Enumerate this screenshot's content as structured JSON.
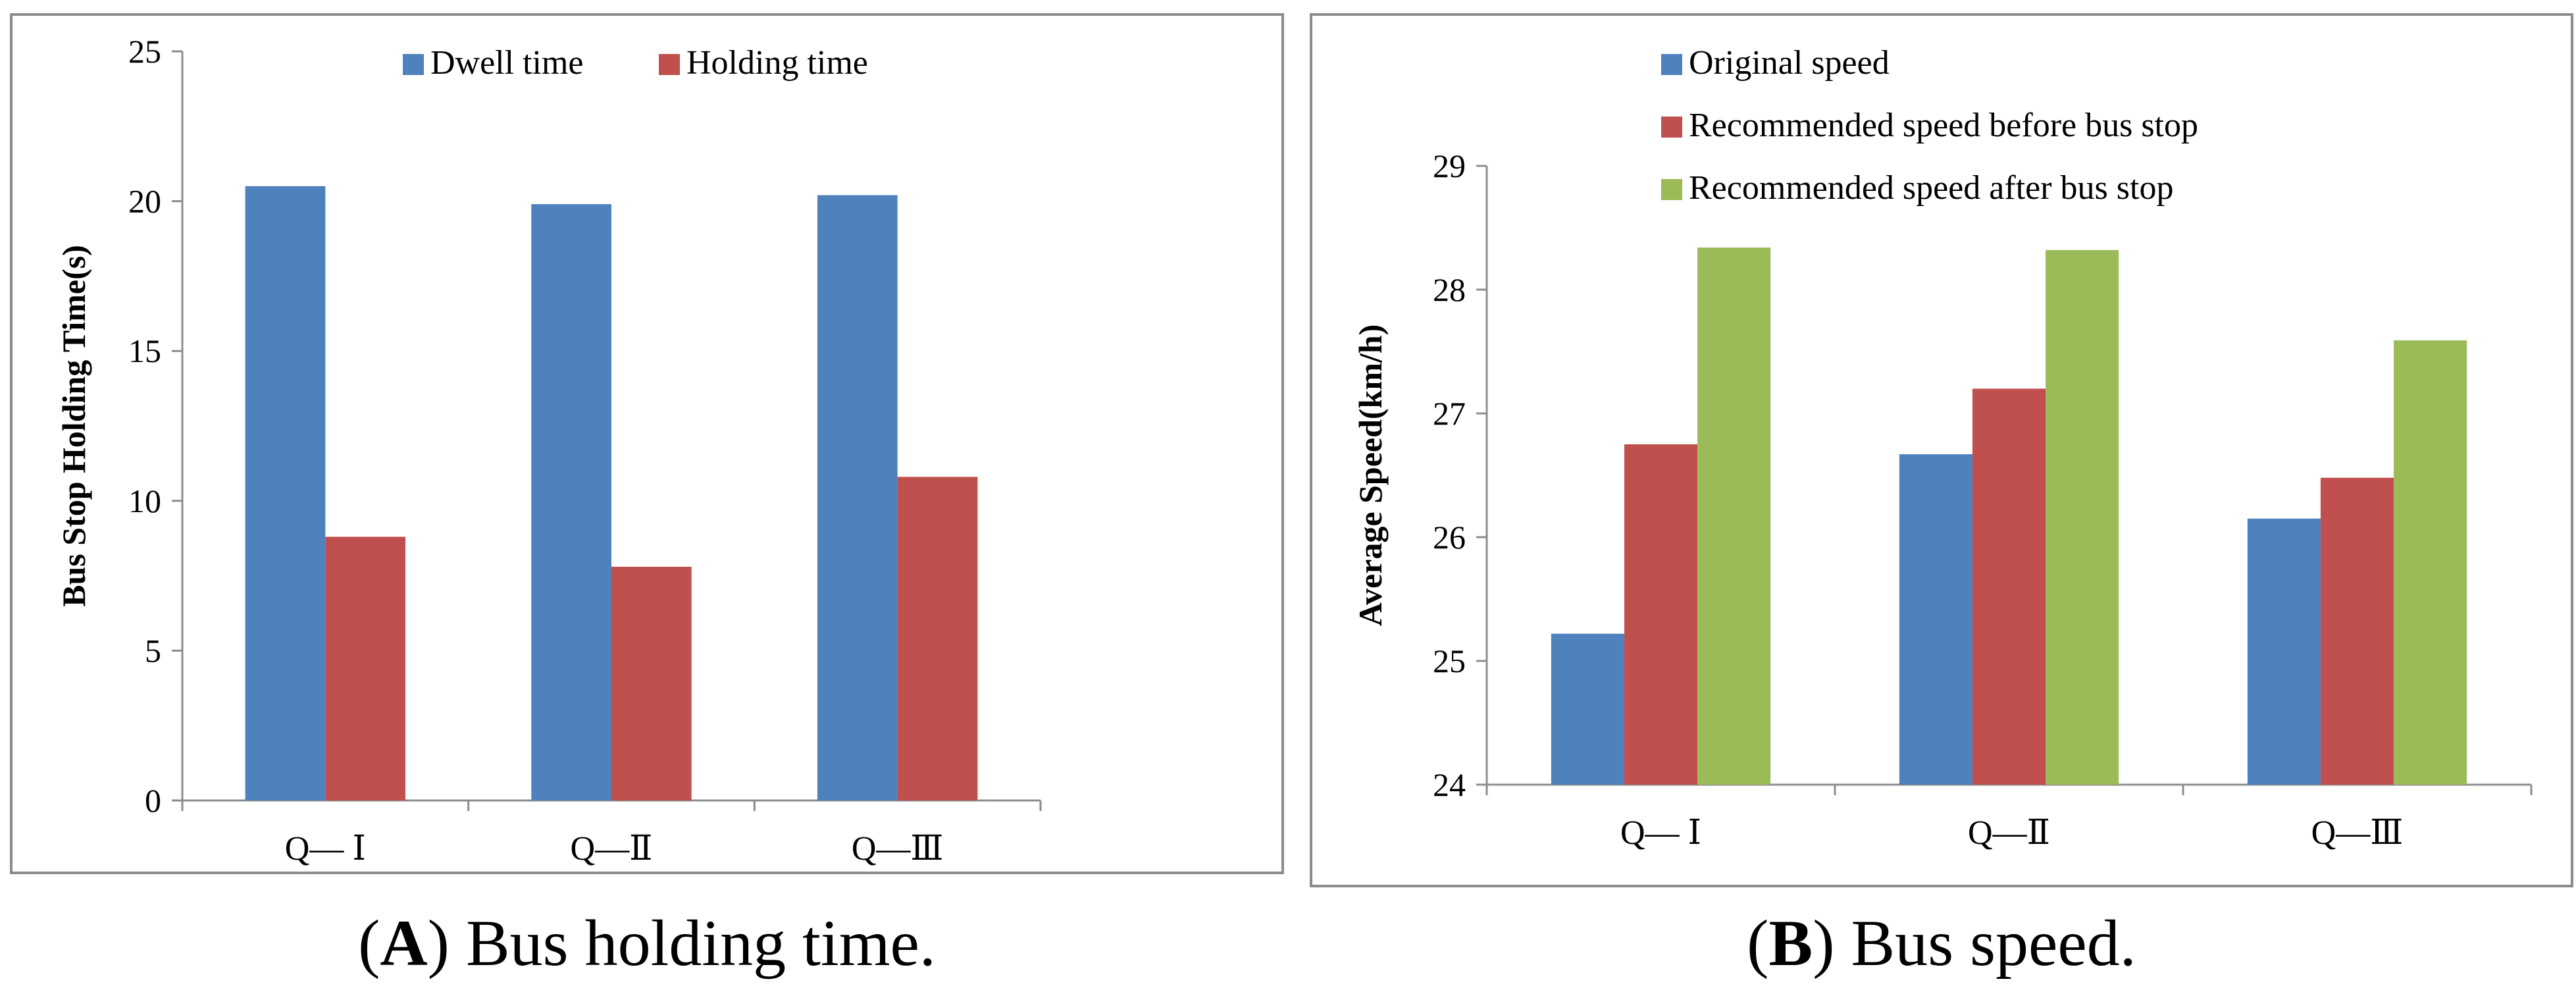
{
  "chart_data": [
    {
      "type": "bar",
      "panel_label": "A",
      "caption": "Bus holding time.",
      "title": "",
      "xlabel": "",
      "ylabel": "Bus Stop Holding Time(s)",
      "ylim": [
        0,
        25
      ],
      "yticks": [
        0,
        5,
        10,
        15,
        20,
        25
      ],
      "categories": [
        "Q— Ⅰ",
        "Q—Ⅱ",
        "Q—Ⅲ"
      ],
      "series": [
        {
          "name": "Dwell time",
          "color": "#4F81BD",
          "values": [
            20.5,
            19.9,
            20.2
          ]
        },
        {
          "name": "Holding time",
          "color": "#C0504D",
          "values": [
            8.8,
            7.8,
            10.8
          ]
        }
      ],
      "legend": "top"
    },
    {
      "type": "bar",
      "panel_label": "B",
      "caption": "Bus speed.",
      "title": "",
      "xlabel": "",
      "ylabel": "Average Speed(km/h)",
      "ylim": [
        24,
        29
      ],
      "yticks": [
        24,
        25,
        26,
        27,
        28,
        29
      ],
      "categories": [
        "Q— Ⅰ",
        "Q—Ⅱ",
        "Q—Ⅲ"
      ],
      "series": [
        {
          "name": "Original speed",
          "color": "#4F81BD",
          "values": [
            25.22,
            26.67,
            26.15
          ]
        },
        {
          "name": "Recommended speed before bus stop",
          "color": "#C0504D",
          "values": [
            26.75,
            27.2,
            26.48
          ]
        },
        {
          "name": "Recommended speed after bus stop",
          "color": "#9BBB59",
          "values": [
            28.34,
            28.32,
            27.59
          ]
        }
      ],
      "legend": "top-left"
    }
  ]
}
